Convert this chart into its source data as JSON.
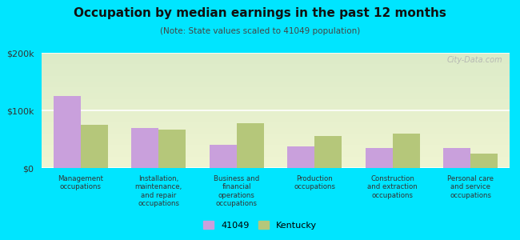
{
  "title": "Occupation by median earnings in the past 12 months",
  "subtitle": "(Note: State values scaled to 41049 population)",
  "categories": [
    "Management\noccupations",
    "Installation,\nmaintenance,\nand repair\noccupations",
    "Business and\nfinancial\noperations\noccupations",
    "Production\noccupations",
    "Construction\nand extraction\noccupations",
    "Personal care\nand service\noccupations"
  ],
  "values_41049": [
    125000,
    70000,
    40000,
    38000,
    35000,
    35000
  ],
  "values_kentucky": [
    75000,
    67000,
    78000,
    55000,
    60000,
    25000
  ],
  "color_41049": "#c9a0dc",
  "color_kentucky": "#b5c77a",
  "background_outer": "#00e5ff",
  "ylim": [
    0,
    200000
  ],
  "yticks": [
    0,
    100000,
    200000
  ],
  "ytick_labels": [
    "$0",
    "$100k",
    "$200k"
  ],
  "watermark": "City-Data.com",
  "legend_41049": "41049",
  "legend_kentucky": "Kentucky",
  "bar_width": 0.35
}
